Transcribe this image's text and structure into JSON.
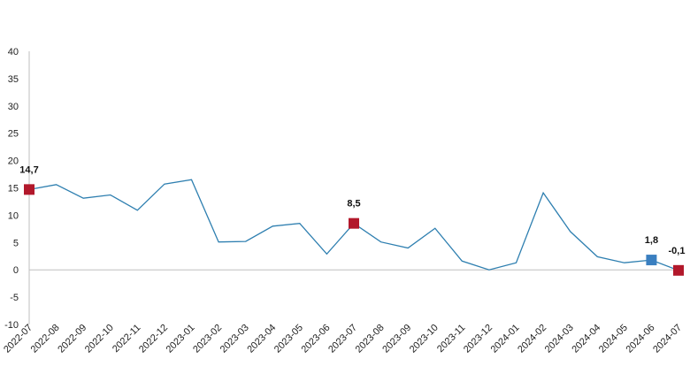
{
  "chart_data": {
    "type": "line",
    "title": "",
    "xlabel": "",
    "ylabel": "",
    "ylim": [
      -10,
      40
    ],
    "yticks": [
      -10,
      -5,
      0,
      5,
      10,
      15,
      20,
      25,
      30,
      35,
      40
    ],
    "ytick_labels": [
      "-10",
      "-5",
      "0",
      "5",
      "10",
      "15",
      "20",
      "25",
      "30",
      "35",
      "40"
    ],
    "grid": false,
    "legend": "none",
    "categories": [
      "2022-07",
      "2022-08",
      "2022-09",
      "2022-10",
      "2022-11",
      "2022-12",
      "2023-01",
      "2023-02",
      "2023-03",
      "2023-04",
      "2023-05",
      "2023-06",
      "2023-07",
      "2023-08",
      "2023-09",
      "2023-10",
      "2023-11",
      "2023-12",
      "2024-01",
      "2024-02",
      "2024-03",
      "2024-04",
      "2024-05",
      "2024-06",
      "2024-07"
    ],
    "series": [
      {
        "values": [
          14.7,
          15.6,
          13.1,
          13.7,
          10.9,
          15.7,
          16.5,
          5.1,
          5.2,
          8.0,
          8.5,
          2.9,
          8.5,
          5.1,
          4.0,
          7.6,
          1.6,
          0.0,
          1.3,
          14.1,
          7.0,
          2.4,
          1.3,
          1.8,
          -0.1
        ],
        "color": "#2e7fb0"
      }
    ],
    "markers": [
      {
        "index": 0,
        "label": "14,7",
        "color": "#b2182b"
      },
      {
        "index": 12,
        "label": "8,5",
        "color": "#b2182b"
      },
      {
        "index": 23,
        "label": "1,8",
        "color": "#3a7fc0"
      },
      {
        "index": 24,
        "label": "-0,1",
        "color": "#b2182b"
      }
    ]
  }
}
